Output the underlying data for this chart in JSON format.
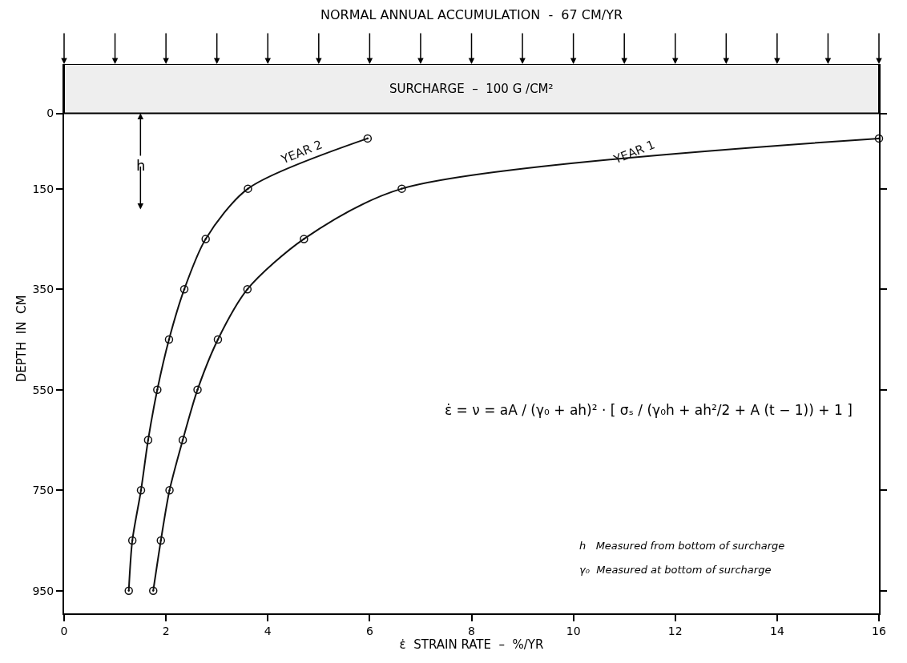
{
  "chart_data": {
    "type": "line",
    "title": "NORMAL ANNUAL ACCUMULATION  -  67 CM/YR",
    "xlabel": "ε̇  STRAIN RATE  –  %/YR",
    "ylabel": "DEPTH  IN  CM",
    "series": [
      {
        "name": "YEAR 2",
        "color": "#111111",
        "x": [
          5.96,
          3.61,
          2.78,
          2.36,
          2.06,
          1.83,
          1.65,
          1.51,
          1.34,
          1.27
        ],
        "values": [
          50,
          150,
          250,
          350,
          450,
          550,
          650,
          750,
          850,
          950
        ]
      },
      {
        "name": "YEAR 1",
        "color": "#111111",
        "x": [
          16.0,
          6.63,
          4.71,
          3.6,
          3.02,
          2.62,
          2.33,
          2.07,
          1.9,
          1.75
        ],
        "values": [
          50,
          150,
          250,
          350,
          450,
          550,
          650,
          750,
          850,
          950
        ]
      }
    ],
    "xlim": [
      0,
      16
    ],
    "xticks": [
      0,
      2,
      4,
      6,
      8,
      10,
      12,
      14,
      16
    ],
    "ylim": [
      995,
      -98
    ],
    "yticks": [
      0,
      150,
      350,
      550,
      750,
      950
    ],
    "bands": [
      {
        "axis": "y",
        "from": -98,
        "to": 0,
        "label": "SURCHARGE  –  100 G /CM²",
        "color": "#eeeeee"
      }
    ],
    "annotations": [
      {
        "text": "h",
        "x": 1.5,
        "y": 0
      },
      "ε̇ = ν = aA / (γ₀ + ah)² · [ σₛ / (γ₀h + ah²/2 + A (t − 1)) + 1 ]",
      "h   Measured from bottom of surcharge",
      "γ₀  Measured at bottom of surcharge"
    ],
    "marker": "circle",
    "line_style": "solid",
    "legend": false
  }
}
